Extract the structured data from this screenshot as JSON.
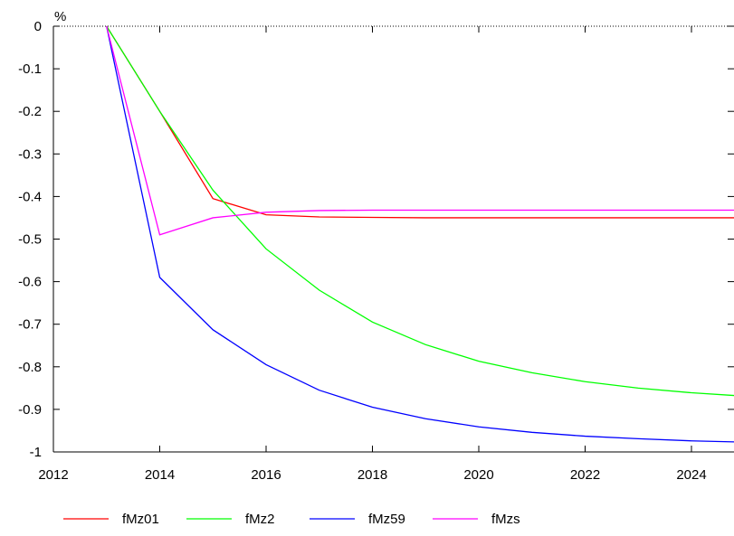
{
  "chart_data": {
    "type": "line",
    "title": "",
    "xlabel": "",
    "ylabel": "%",
    "xlim": [
      2012,
      2024.8
    ],
    "ylim": [
      -1,
      0
    ],
    "x_ticks": [
      "2012",
      "2014",
      "2016",
      "2018",
      "2020",
      "2022",
      "2024"
    ],
    "y_ticks": [
      "0",
      "-0.1",
      "-0.2",
      "-0.3",
      "-0.4",
      "-0.5",
      "-0.6",
      "-0.7",
      "-0.8",
      "-0.9",
      "-1"
    ],
    "x": [
      2013,
      2014,
      2015,
      2016,
      2017,
      2018,
      2019,
      2020,
      2021,
      2022,
      2023,
      2024,
      2025
    ],
    "series": [
      {
        "name": "fMz01",
        "color": "#ff0000",
        "values": [
          0,
          -0.2,
          -0.405,
          -0.443,
          -0.448,
          -0.449,
          -0.45,
          -0.45,
          -0.45,
          -0.45,
          -0.45,
          -0.45,
          -0.45
        ]
      },
      {
        "name": "fMz2",
        "color": "#00ff00",
        "values": [
          0,
          -0.2,
          -0.385,
          -0.523,
          -0.62,
          -0.695,
          -0.748,
          -0.787,
          -0.814,
          -0.835,
          -0.85,
          -0.861,
          -0.869
        ]
      },
      {
        "name": "fMz59",
        "color": "#0000ff",
        "values": [
          0,
          -0.59,
          -0.713,
          -0.795,
          -0.855,
          -0.895,
          -0.922,
          -0.941,
          -0.954,
          -0.963,
          -0.969,
          -0.974,
          -0.977
        ]
      },
      {
        "name": "fMzs",
        "color": "#ff00ff",
        "values": [
          0,
          -0.49,
          -0.45,
          -0.437,
          -0.433,
          -0.432,
          -0.432,
          -0.432,
          -0.432,
          -0.432,
          -0.432,
          -0.432,
          -0.432
        ]
      }
    ],
    "grid": false,
    "legend_position": "bottom"
  }
}
